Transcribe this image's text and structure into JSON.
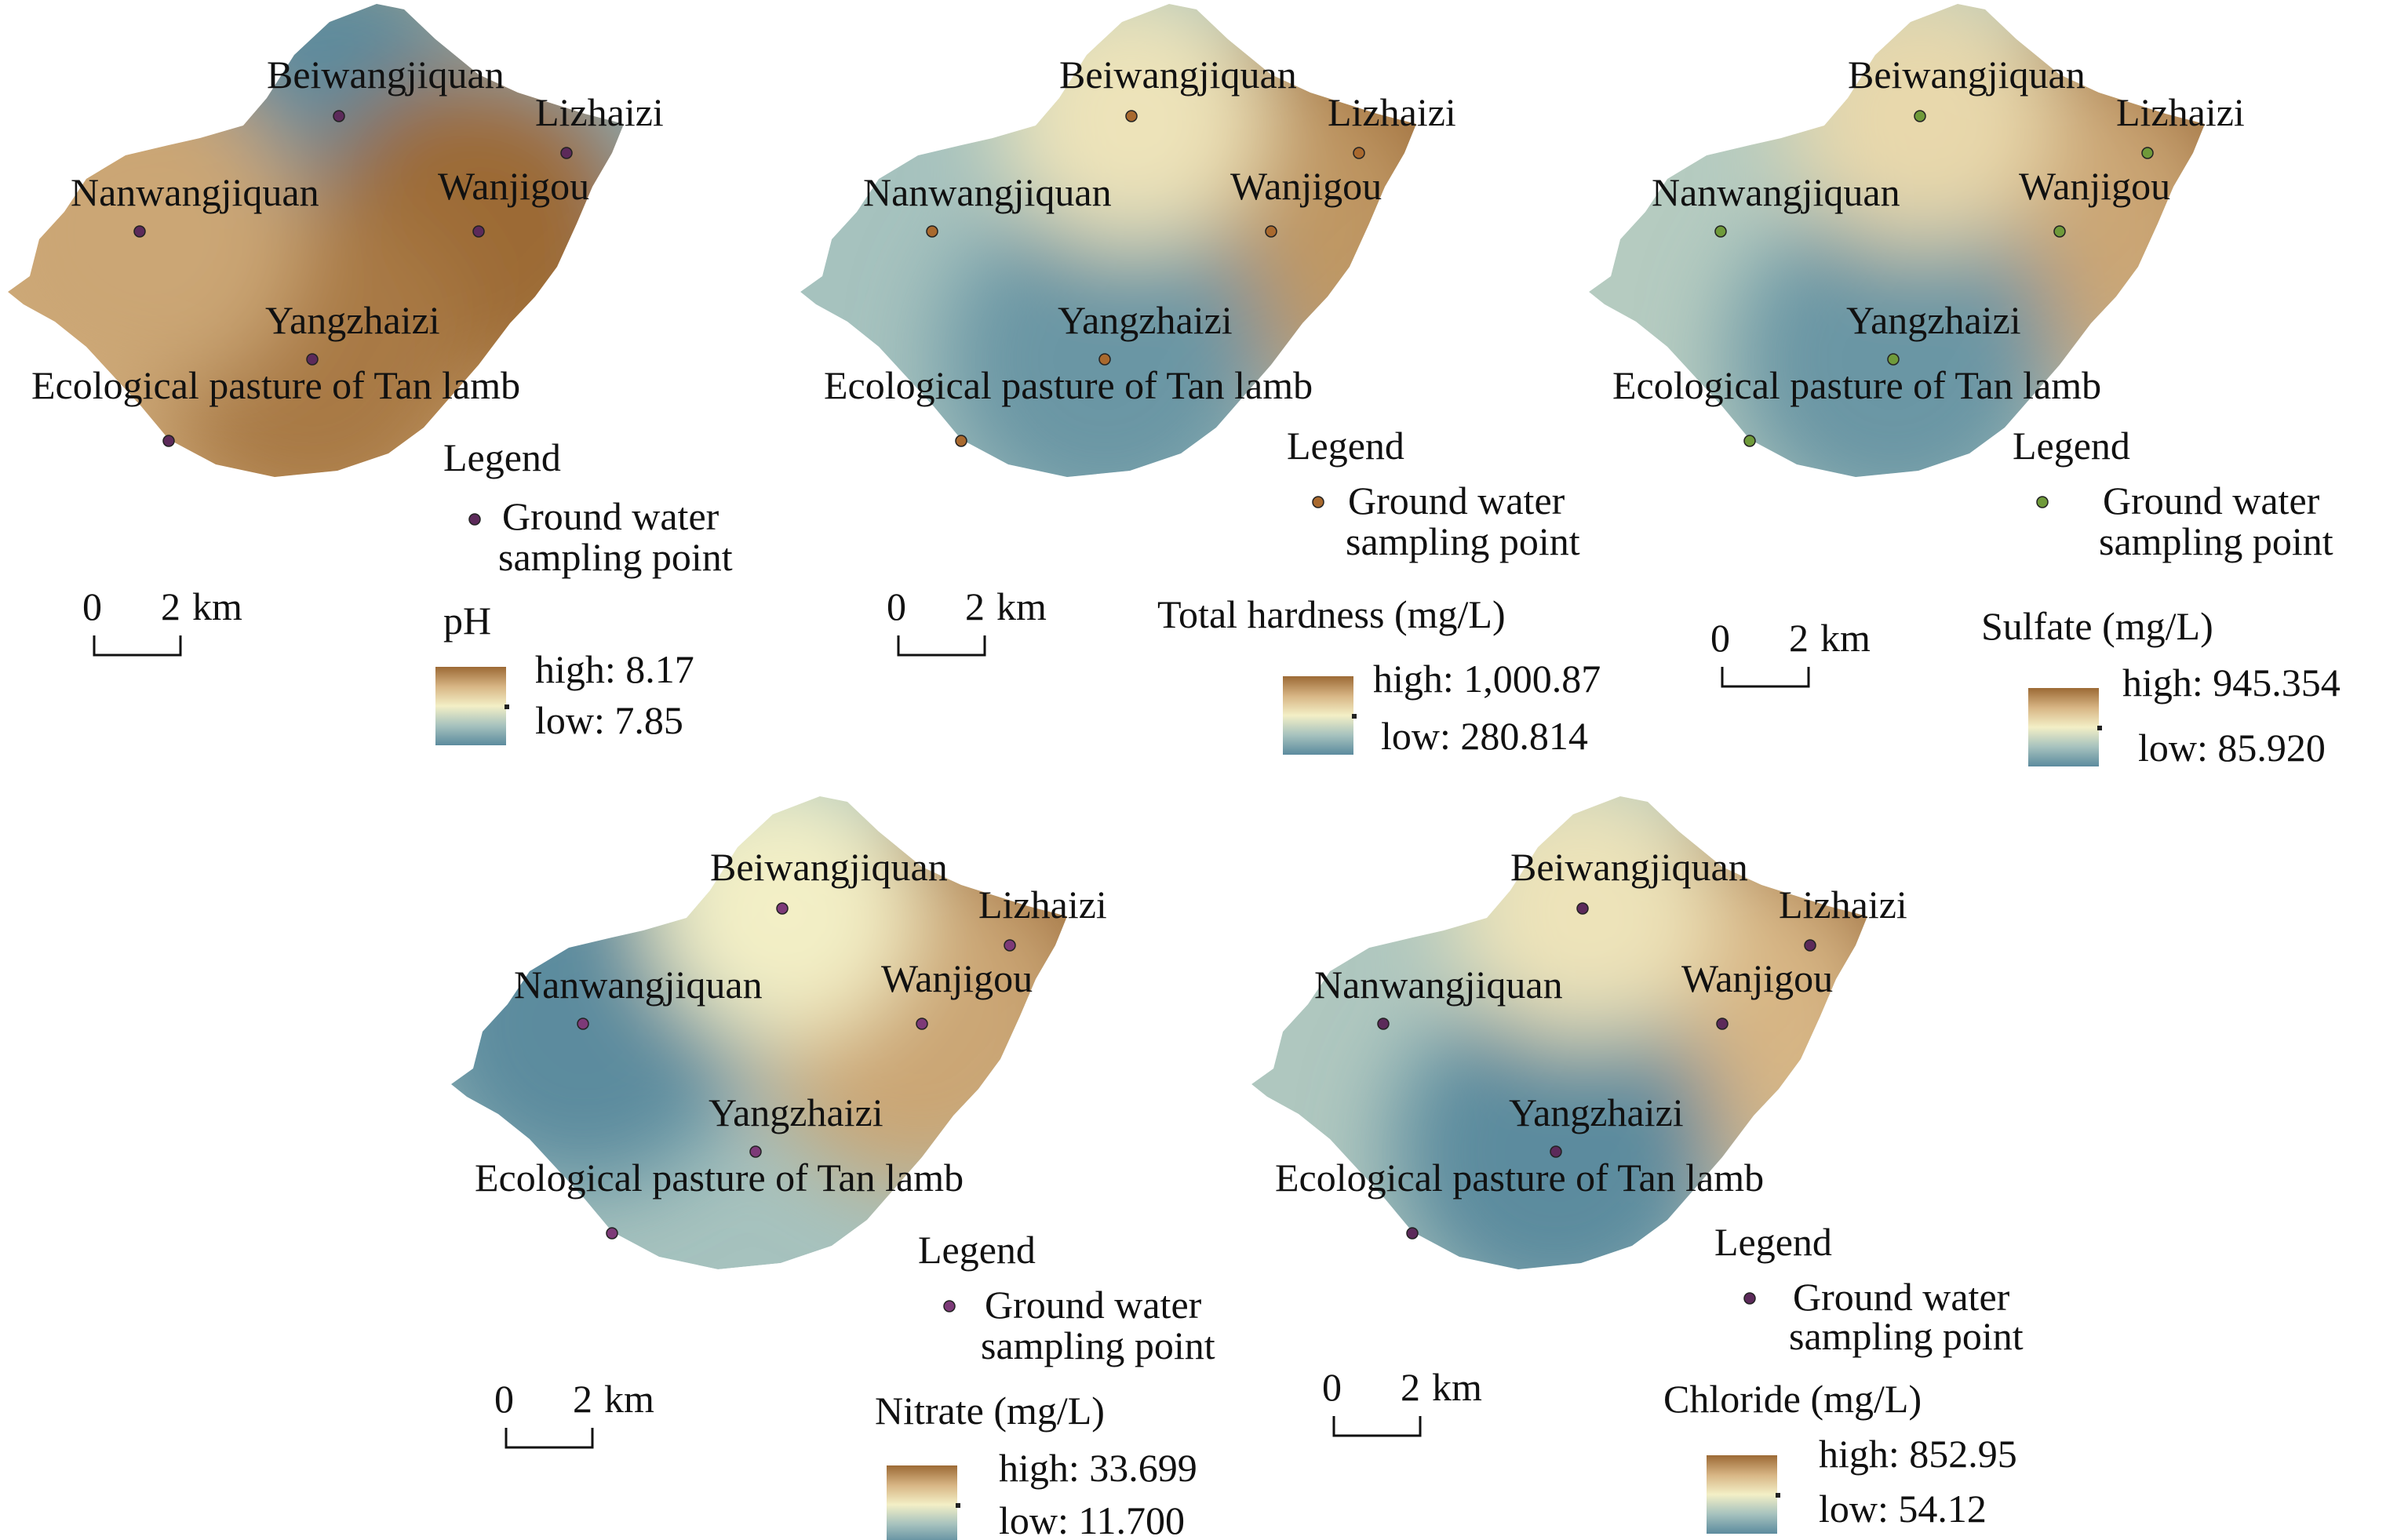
{
  "place_names": {
    "beiwangjiquan": "Beiwangjiquan",
    "lizhaizi": "Lizhaizi",
    "nanwangjiquan": "Nanwangjiquan",
    "wanjigou": "Wanjigou",
    "yangzhaizi": "Yangzhaizi",
    "ecological_pasture": "Ecological pasture of Tan lamb"
  },
  "legend": {
    "title": "Legend",
    "point_label_line1": "Ground water",
    "point_label_line2": "sampling point"
  },
  "scale_bar": {
    "zero": "0",
    "two": "2",
    "unit": "km"
  },
  "colors": {
    "high": "#9c6a35",
    "mid_high": "#d7b584",
    "mid": "#f3efc6",
    "mid_low": "#a6c2be",
    "low": "#5c8b9e"
  },
  "maps": [
    {
      "id": "ph",
      "title": "pH",
      "high_label": "high: 8.17",
      "low_label": "low: 7.85",
      "base_level": 0.78,
      "point_color": "#5c2a5a",
      "hotspots": [
        {
          "site": "beiwangjiquan",
          "level": 0.0
        },
        {
          "site": "lizhaizi",
          "level": 0.15
        },
        {
          "site": "wanjigou",
          "level": 1.0
        },
        {
          "site": "yangzhaizi",
          "level": 0.95
        },
        {
          "site": "nanwangjiquan",
          "level": 0.8
        }
      ]
    },
    {
      "id": "hardness",
      "title": "Total hardness (mg/L)",
      "high_label": "high: 1,000.87",
      "low_label": "low: 280.814",
      "base_level": 0.25,
      "point_color": "#a9692e",
      "hotspots": [
        {
          "site": "lizhaizi",
          "level": 1.0
        },
        {
          "site": "wanjigou",
          "level": 0.85
        },
        {
          "site": "yangzhaizi",
          "level": 0.05
        },
        {
          "site": "beiwangjiquan",
          "level": 0.55
        }
      ]
    },
    {
      "id": "sulfate",
      "title": "Sulfate (mg/L)",
      "high_label": "high: 945.354",
      "low_label": "low: 85.920",
      "base_level": 0.3,
      "point_color": "#6f9a3a",
      "hotspots": [
        {
          "site": "lizhaizi",
          "level": 1.0
        },
        {
          "site": "wanjigou",
          "level": 0.8
        },
        {
          "site": "yangzhaizi",
          "level": 0.05
        },
        {
          "site": "beiwangjiquan",
          "level": 0.6
        }
      ]
    },
    {
      "id": "nitrate",
      "title": "Nitrate (mg/L)",
      "high_label": "high: 33.699",
      "low_label": "low: 11.700",
      "base_level": 0.25,
      "point_color": "#7d3a78",
      "hotspots": [
        {
          "site": "lizhaizi",
          "level": 1.0
        },
        {
          "site": "wanjigou",
          "level": 0.8
        },
        {
          "site": "nanwangjiquan",
          "level": 0.0
        },
        {
          "site": "beiwangjiquan",
          "level": 0.5
        }
      ]
    },
    {
      "id": "chloride",
      "title": "Chloride (mg/L)",
      "high_label": "high: 852.95",
      "low_label": "low: 54.12",
      "base_level": 0.28,
      "point_color": "#5c2a5a",
      "hotspots": [
        {
          "site": "lizhaizi",
          "level": 1.0
        },
        {
          "site": "wanjigou",
          "level": 0.75
        },
        {
          "site": "yangzhaizi",
          "level": 0.0
        },
        {
          "site": "beiwangjiquan",
          "level": 0.55
        }
      ]
    }
  ]
}
